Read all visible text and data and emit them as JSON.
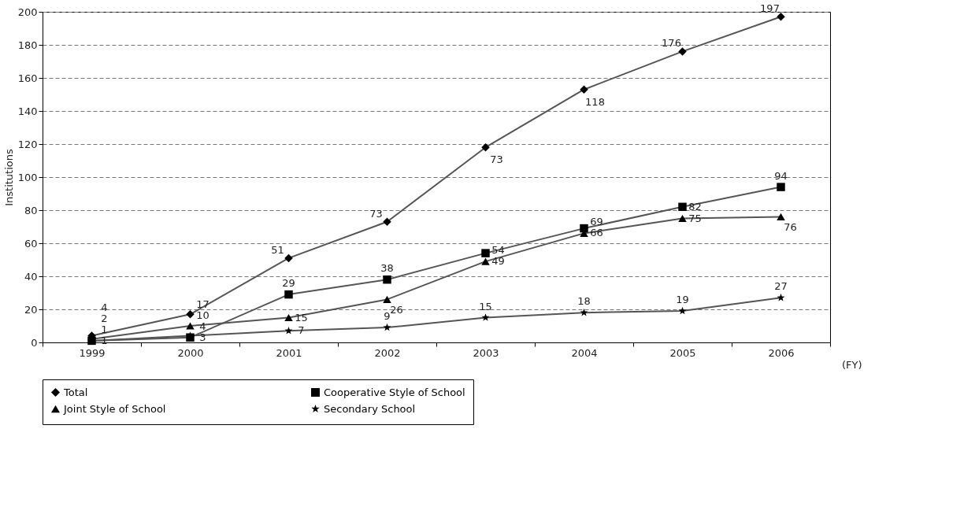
{
  "chart_data": {
    "type": "line",
    "ylabel": "Institutions",
    "xlabel": "(FY)",
    "categories": [
      "1999",
      "2000",
      "2001",
      "2002",
      "2003",
      "2004",
      "2005",
      "2006"
    ],
    "series": [
      {
        "name": "Total",
        "color": "#555555",
        "marker": "diamond",
        "values": [
          4,
          17,
          51,
          73,
          118,
          153,
          176,
          197
        ],
        "value_labels": [
          "4",
          "17",
          "51",
          "73",
          null,
          null,
          "176",
          "197"
        ]
      },
      {
        "name": "Cooperative Style of School",
        "color": "#555555",
        "marker": "square",
        "values": [
          1,
          3,
          29,
          38,
          54,
          69,
          82,
          94
        ],
        "value_labels": [
          "1",
          "3",
          "29",
          "38",
          "54",
          "69",
          "82",
          "94"
        ]
      },
      {
        "name": "Joint Style of School",
        "color": "#555555",
        "marker": "triangle",
        "values": [
          2,
          10,
          15,
          26,
          49,
          66,
          75,
          76
        ],
        "value_labels": [
          "2",
          "10",
          "15",
          "26",
          "49",
          "66",
          "75",
          "76"
        ]
      },
      {
        "name": "Secondary School",
        "color": "#555555",
        "marker": "star",
        "values": [
          1,
          4,
          7,
          9,
          15,
          18,
          19,
          27
        ],
        "value_labels": [
          "1",
          "4",
          "7",
          "9",
          "15",
          "18",
          "19",
          "27"
        ]
      }
    ],
    "ylim": [
      0,
      200
    ],
    "yticks": [
      0,
      20,
      40,
      60,
      80,
      100,
      120,
      140,
      160,
      180,
      200
    ],
    "annotations": [
      {
        "text": "73",
        "x": "2003",
        "y": 118
      },
      {
        "text": "118",
        "x": "2004",
        "y": 153
      }
    ],
    "grid": "y",
    "legend": "bottom",
    "line_style": "solid"
  }
}
